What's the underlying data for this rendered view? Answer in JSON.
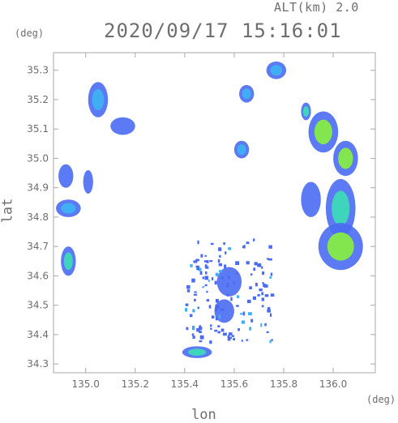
{
  "header": {
    "altitude_label": "ALT(km) 2.0",
    "timestamp": "2020/09/17 15:16:01"
  },
  "axes": {
    "x_title": "lon",
    "y_title": "lat",
    "x_unit": "(deg)",
    "y_unit": "(deg)",
    "x_range": [
      134.87,
      136.17
    ],
    "y_range": [
      34.27,
      35.36
    ],
    "x_ticks": [
      "135.0",
      "135.2",
      "135.4",
      "135.6",
      "135.8",
      "136.0"
    ],
    "y_ticks": [
      "34.3",
      "34.4",
      "34.5",
      "34.6",
      "34.7",
      "34.8",
      "34.9",
      "35.0",
      "35.1",
      "35.2",
      "35.3"
    ]
  },
  "colors": {
    "frame": "#a8a8a8",
    "echo_light": "#4a6bf2",
    "echo_moderate": "#3fb0f2",
    "echo_strong": "#3dd9b8",
    "echo_heavy": "#86ec45"
  },
  "chart_data": {
    "type": "heatmap",
    "title": "2020/09/17 15:16:01",
    "subtitle": "ALT(km) 2.0",
    "xlabel": "lon",
    "ylabel": "lat",
    "xlim": [
      134.87,
      136.17
    ],
    "ylim": [
      34.27,
      35.36
    ],
    "grid": false,
    "echo_regions": [
      {
        "lon": 135.05,
        "lat": 35.2,
        "w": 0.04,
        "h": 0.06,
        "level": "moderate"
      },
      {
        "lon": 135.65,
        "lat": 35.22,
        "w": 0.03,
        "h": 0.03,
        "level": "moderate"
      },
      {
        "lon": 135.77,
        "lat": 35.3,
        "w": 0.04,
        "h": 0.03,
        "level": "moderate"
      },
      {
        "lon": 135.89,
        "lat": 35.16,
        "w": 0.02,
        "h": 0.03,
        "level": "strong"
      },
      {
        "lon": 135.15,
        "lat": 35.11,
        "w": 0.05,
        "h": 0.03,
        "level": "light"
      },
      {
        "lon": 135.63,
        "lat": 35.03,
        "w": 0.03,
        "h": 0.03,
        "level": "moderate"
      },
      {
        "lon": 135.96,
        "lat": 35.09,
        "w": 0.06,
        "h": 0.07,
        "level": "heavy"
      },
      {
        "lon": 136.05,
        "lat": 35.0,
        "w": 0.05,
        "h": 0.06,
        "level": "heavy"
      },
      {
        "lon": 134.92,
        "lat": 34.94,
        "w": 0.03,
        "h": 0.04,
        "level": "light"
      },
      {
        "lon": 135.01,
        "lat": 34.92,
        "w": 0.02,
        "h": 0.04,
        "level": "light"
      },
      {
        "lon": 134.93,
        "lat": 34.83,
        "w": 0.05,
        "h": 0.03,
        "level": "moderate"
      },
      {
        "lon": 135.91,
        "lat": 34.86,
        "w": 0.04,
        "h": 0.06,
        "level": "light"
      },
      {
        "lon": 136.03,
        "lat": 34.83,
        "w": 0.06,
        "h": 0.1,
        "level": "strong"
      },
      {
        "lon": 136.03,
        "lat": 34.7,
        "w": 0.09,
        "h": 0.08,
        "level": "heavy"
      },
      {
        "lon": 134.93,
        "lat": 34.65,
        "w": 0.03,
        "h": 0.05,
        "level": "strong"
      },
      {
        "lon": 135.58,
        "lat": 34.58,
        "w": 0.05,
        "h": 0.05,
        "level": "light"
      },
      {
        "lon": 135.56,
        "lat": 34.48,
        "w": 0.04,
        "h": 0.04,
        "level": "light"
      },
      {
        "lon": 135.45,
        "lat": 34.34,
        "w": 0.06,
        "h": 0.02,
        "level": "strong"
      }
    ]
  }
}
